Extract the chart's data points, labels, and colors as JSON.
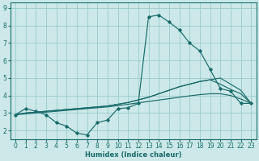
{
  "xlabel": "Humidex (Indice chaleur)",
  "bg_color": "#cce8e8",
  "grid_color": "#99cccc",
  "line_color": "#1a6b6b",
  "xlim": [
    -0.5,
    23.5
  ],
  "ylim": [
    1.5,
    9.3
  ],
  "xticks": [
    0,
    1,
    2,
    3,
    4,
    5,
    6,
    7,
    8,
    9,
    10,
    11,
    12,
    13,
    14,
    15,
    16,
    17,
    18,
    19,
    20,
    21,
    22,
    23
  ],
  "yticks": [
    2,
    3,
    4,
    5,
    6,
    7,
    8,
    9
  ],
  "line1_x": [
    0,
    1,
    2,
    3,
    4,
    5,
    6,
    7,
    8,
    9,
    10,
    11,
    12,
    13,
    14,
    15,
    16,
    17,
    18,
    19,
    20,
    21,
    22,
    23
  ],
  "line1_y": [
    2.9,
    3.25,
    3.1,
    2.9,
    2.45,
    2.25,
    1.85,
    1.75,
    2.45,
    2.6,
    3.25,
    3.3,
    3.55,
    8.5,
    8.6,
    8.2,
    7.75,
    7.0,
    6.55,
    5.5,
    4.4,
    4.25,
    3.55,
    3.55
  ],
  "line2_x": [
    0,
    1,
    2,
    3,
    4,
    5,
    6,
    7,
    8,
    9,
    10,
    11,
    12,
    13,
    14,
    15,
    16,
    17,
    18,
    19,
    20,
    21,
    22,
    23
  ],
  "line2_y": [
    2.9,
    3.0,
    3.05,
    3.1,
    3.15,
    3.2,
    3.25,
    3.3,
    3.35,
    3.4,
    3.5,
    3.6,
    3.75,
    3.9,
    4.1,
    4.3,
    4.5,
    4.65,
    4.8,
    4.9,
    5.0,
    4.65,
    4.3,
    3.55
  ],
  "line3_x": [
    0,
    1,
    2,
    3,
    4,
    5,
    6,
    7,
    8,
    9,
    10,
    11,
    12,
    13,
    14,
    15,
    16,
    17,
    18,
    19,
    20,
    21,
    22,
    23
  ],
  "line3_y": [
    2.9,
    3.0,
    3.05,
    3.1,
    3.15,
    3.2,
    3.25,
    3.3,
    3.35,
    3.4,
    3.5,
    3.6,
    3.75,
    3.9,
    4.1,
    4.3,
    4.5,
    4.65,
    4.8,
    4.9,
    4.65,
    4.35,
    4.1,
    3.55
  ],
  "line4_x": [
    0,
    1,
    2,
    3,
    4,
    5,
    6,
    7,
    8,
    9,
    10,
    11,
    12,
    13,
    14,
    15,
    16,
    17,
    18,
    19,
    20,
    21,
    22,
    23
  ],
  "line4_y": [
    2.9,
    2.95,
    3.0,
    3.05,
    3.1,
    3.15,
    3.2,
    3.25,
    3.3,
    3.35,
    3.42,
    3.5,
    3.58,
    3.66,
    3.74,
    3.82,
    3.9,
    3.98,
    4.05,
    4.1,
    4.1,
    4.0,
    3.8,
    3.55
  ]
}
